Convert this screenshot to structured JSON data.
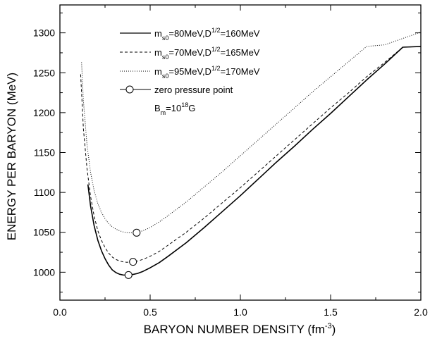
{
  "chart_data": {
    "type": "line",
    "xlabel": "BARYON NUMBER DENSITY (fm",
    "xlabel_sup": "-3",
    "xlabel_close": ")",
    "ylabel": "ENERGY PER BARYON (MeV)",
    "xlim": [
      0.0,
      2.0
    ],
    "ylim": [
      965,
      1335
    ],
    "x_ticks": [
      0.0,
      0.5,
      1.0,
      1.5,
      2.0
    ],
    "x_tick_labels": [
      "0.0",
      "0.5",
      "1.0",
      "1.5",
      "2.0"
    ],
    "y_ticks": [
      1000,
      1050,
      1100,
      1150,
      1200,
      1250,
      1300
    ],
    "y_tick_labels": [
      "1000",
      "1050",
      "1100",
      "1150",
      "1200",
      "1250",
      "1300"
    ],
    "grid": false,
    "legend_position": "top-left",
    "series": [
      {
        "style": "solid",
        "legend": {
          "m": "m",
          "sub": "s0",
          "a": "=80MeV,D",
          "sup": "1/2",
          "b": "=160MeV"
        },
        "x": [
          0.155,
          0.17,
          0.19,
          0.21,
          0.23,
          0.25,
          0.27,
          0.29,
          0.31,
          0.33,
          0.35,
          0.37,
          0.385,
          0.4,
          0.43,
          0.46,
          0.5,
          0.55,
          0.6,
          0.7,
          0.8,
          0.9,
          1.0,
          1.1,
          1.2,
          1.3,
          1.4,
          1.5,
          1.6,
          1.7,
          1.8,
          1.9,
          2.0
        ],
        "y": [
          1110,
          1083,
          1058,
          1040,
          1027,
          1017,
          1009,
          1003,
          999.5,
          997.5,
          996.5,
          996.4,
          996.6,
          997,
          998.5,
          1001,
          1005.5,
          1012,
          1020,
          1037,
          1056,
          1076,
          1096,
          1117,
          1138,
          1158,
          1179,
          1199,
          1220,
          1241,
          1261,
          1282,
          1283
        ]
      },
      {
        "style": "dashed",
        "legend": {
          "m": "m",
          "sub": "s0",
          "a": "=70MeV,D",
          "sup": "1/2",
          "b": "=165MeV"
        },
        "x": [
          0.115,
          0.13,
          0.15,
          0.17,
          0.19,
          0.21,
          0.23,
          0.25,
          0.27,
          0.29,
          0.31,
          0.33,
          0.35,
          0.37,
          0.39,
          0.41,
          0.44,
          0.47,
          0.5,
          0.55,
          0.6,
          0.7,
          0.8,
          0.9,
          1.0,
          1.1,
          1.2,
          1.3,
          1.4,
          1.5,
          1.6,
          1.7,
          1.8,
          1.9,
          2.0
        ],
        "y": [
          1248,
          1180,
          1130,
          1095,
          1070,
          1052,
          1040,
          1031,
          1024,
          1019,
          1016,
          1014,
          1013,
          1012.5,
          1012.7,
          1013,
          1014.5,
          1017,
          1020,
          1026,
          1034,
          1050,
          1068,
          1087,
          1106,
          1126,
          1146,
          1166,
          1186,
          1206,
          1225,
          1245,
          1263,
          1282,
          1283
        ]
      },
      {
        "style": "dotted",
        "legend": {
          "m": "m",
          "sub": "s0",
          "a": "=95MeV,D",
          "sup": "1/2",
          "b": "=170MeV"
        },
        "x": [
          0.12,
          0.13,
          0.15,
          0.17,
          0.19,
          0.21,
          0.23,
          0.25,
          0.27,
          0.29,
          0.31,
          0.33,
          0.35,
          0.37,
          0.39,
          0.41,
          0.43,
          0.46,
          0.5,
          0.55,
          0.6,
          0.7,
          0.8,
          0.9,
          1.0,
          1.1,
          1.2,
          1.3,
          1.4,
          1.5,
          1.6,
          1.7,
          1.8,
          1.9,
          2.0
        ],
        "y": [
          1263,
          1215,
          1160,
          1125,
          1102,
          1086,
          1075,
          1067,
          1061,
          1057,
          1054,
          1052,
          1050.5,
          1049.6,
          1049.3,
          1049.5,
          1050,
          1052,
          1056,
          1063,
          1071,
          1088,
          1107,
          1126,
          1146,
          1166,
          1186,
          1206,
          1226,
          1245,
          1264,
          1283,
          1285,
          1293,
          1301
        ]
      }
    ],
    "zero_pressure_points": [
      {
        "x": 0.38,
        "y": 996.5
      },
      {
        "x": 0.405,
        "y": 1013
      },
      {
        "x": 0.425,
        "y": 1049.5
      }
    ],
    "legend_marker": {
      "label": "zero pressure point"
    },
    "annotation": {
      "base": "B",
      "sub": "m",
      "mid": "=10",
      "sup": "18",
      "end": "G"
    }
  }
}
